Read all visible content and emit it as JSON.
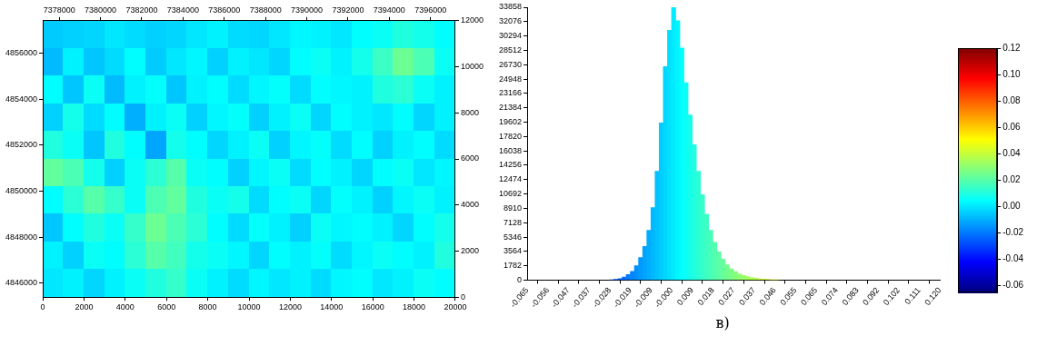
{
  "caption": "в)",
  "chart_data": [
    {
      "type": "heatmap",
      "xlim": [
        0,
        20000
      ],
      "xticks": [
        0,
        2000,
        4000,
        6000,
        8000,
        10000,
        12000,
        14000,
        16000,
        18000,
        20000
      ],
      "x2lim": [
        7377200,
        7397200
      ],
      "x2ticks": [
        7378000,
        7380000,
        7382000,
        7384000,
        7386000,
        7388000,
        7390000,
        7392000,
        7394000,
        7396000
      ],
      "ylim": [
        4845400,
        4857400
      ],
      "yticks": [
        4846000,
        4848000,
        4850000,
        4852000,
        4854000,
        4856000
      ],
      "y2lim": [
        0,
        12000
      ],
      "y2ticks": [
        0,
        2000,
        4000,
        6000,
        8000,
        10000,
        12000
      ],
      "grid": false,
      "cells": [
        [
          -0.005,
          -0.004,
          -0.003,
          0.0,
          -0.002,
          -0.004,
          -0.003,
          0.0,
          0.002,
          -0.002,
          -0.003,
          0.0,
          0.003,
          0.002,
          0.0,
          0.004,
          0.006,
          0.01,
          0.008,
          0.004
        ],
        [
          -0.008,
          0.002,
          -0.006,
          -0.002,
          0.004,
          -0.005,
          0.0,
          0.003,
          -0.004,
          0.002,
          0.0,
          -0.003,
          0.004,
          0.006,
          0.002,
          0.008,
          0.015,
          0.024,
          0.018,
          0.006
        ],
        [
          0.004,
          -0.006,
          0.006,
          -0.008,
          0.002,
          0.005,
          -0.006,
          0.002,
          0.004,
          -0.002,
          0.003,
          0.005,
          -0.002,
          0.004,
          0.003,
          0.002,
          0.01,
          0.012,
          0.006,
          0.002
        ],
        [
          -0.004,
          0.008,
          -0.002,
          0.004,
          -0.01,
          0.002,
          0.006,
          -0.004,
          0.003,
          0.005,
          -0.004,
          0.002,
          0.006,
          -0.003,
          0.004,
          0.002,
          0.0,
          0.004,
          -0.003,
          0.002
        ],
        [
          0.01,
          0.006,
          -0.006,
          0.01,
          0.004,
          -0.012,
          0.008,
          0.004,
          -0.003,
          0.002,
          0.006,
          -0.004,
          0.003,
          0.005,
          -0.002,
          0.004,
          -0.004,
          0.002,
          0.004,
          -0.002
        ],
        [
          0.022,
          0.018,
          0.008,
          -0.004,
          0.006,
          0.012,
          0.02,
          0.006,
          0.004,
          -0.004,
          0.003,
          0.006,
          -0.002,
          0.004,
          0.002,
          -0.003,
          0.004,
          0.006,
          0.0,
          0.003
        ],
        [
          0.004,
          0.012,
          0.02,
          0.014,
          0.006,
          0.018,
          0.022,
          0.01,
          0.006,
          0.008,
          -0.002,
          0.004,
          0.006,
          -0.003,
          0.005,
          0.002,
          -0.004,
          0.003,
          0.006,
          0.002
        ],
        [
          -0.006,
          0.004,
          0.01,
          0.006,
          0.014,
          0.024,
          0.018,
          0.012,
          0.004,
          -0.002,
          0.005,
          0.002,
          -0.004,
          0.006,
          0.003,
          0.004,
          0.002,
          -0.003,
          0.004,
          0.008
        ],
        [
          0.002,
          -0.004,
          0.006,
          0.004,
          0.012,
          0.02,
          0.016,
          0.008,
          0.006,
          0.003,
          -0.003,
          0.004,
          0.002,
          0.005,
          -0.002,
          0.003,
          0.006,
          0.004,
          0.002,
          0.01
        ],
        [
          0.0,
          0.002,
          -0.003,
          0.002,
          0.006,
          0.01,
          0.014,
          0.006,
          0.002,
          -0.002,
          0.003,
          0.0,
          0.002,
          -0.002,
          0.003,
          0.004,
          0.0,
          0.002,
          0.006,
          0.004
        ]
      ]
    },
    {
      "type": "histogram",
      "bins": [
        -0.028,
        -0.02615,
        -0.0243,
        -0.02245,
        -0.0206,
        -0.01875,
        -0.0169,
        -0.01505,
        -0.0132,
        -0.01135,
        -0.0095,
        -0.00765,
        -0.0058,
        -0.00395,
        -0.0021,
        -0.00025,
        0.0016,
        0.00345,
        0.0053,
        0.00715,
        0.009,
        0.01085,
        0.0127,
        0.01455,
        0.0164,
        0.01825,
        0.0201,
        0.02195,
        0.0238,
        0.02565,
        0.0275,
        0.02935,
        0.0312,
        0.03305,
        0.0349,
        0.03675,
        0.0386,
        0.04045,
        0.0423,
        0.04415,
        0.046,
        0.04785
      ],
      "values": [
        50,
        100,
        200,
        400,
        700,
        1100,
        1800,
        2800,
        4200,
        6200,
        9000,
        13500,
        19500,
        26500,
        31000,
        33858,
        32200,
        28800,
        24500,
        20500,
        16800,
        13500,
        10600,
        8200,
        6200,
        4700,
        3500,
        2600,
        1900,
        1400,
        1050,
        780,
        580,
        430,
        320,
        240,
        170,
        120,
        80,
        50,
        30
      ],
      "xlim": [
        -0.065,
        0.12
      ],
      "xticks": [
        {
          "value": -0.065,
          "label": "-0.065"
        },
        {
          "value": -0.05575,
          "label": "-0.056"
        },
        {
          "value": -0.0465,
          "label": "-0.047"
        },
        {
          "value": -0.03725,
          "label": "-0.037"
        },
        -0.028,
        {
          "value": -0.01875,
          "label": "-0.019"
        },
        {
          "value": -0.0095,
          "label": "-0.009"
        },
        {
          "value": -0.00025,
          "label": "-0.000"
        },
        0.009,
        {
          "value": 0.01825,
          "label": "0.018"
        },
        {
          "value": 0.0275,
          "label": "0.027"
        },
        {
          "value": 0.03675,
          "label": "0.037"
        },
        0.046,
        {
          "value": 0.05525,
          "label": "0.055"
        },
        {
          "value": 0.0645,
          "label": "0.065"
        },
        {
          "value": 0.07375,
          "label": "0.074"
        },
        0.083,
        {
          "value": 0.09225,
          "label": "0.092"
        },
        {
          "value": 0.1015,
          "label": "0.102"
        },
        {
          "value": 0.11075,
          "label": "0.111"
        },
        {
          "value": 0.12,
          "label": "0.120"
        }
      ],
      "ylim": [
        0,
        33858
      ],
      "yticks": [
        0,
        1782,
        3564,
        5346,
        7128,
        8910,
        10692,
        12474,
        14256,
        16038,
        17820,
        19602,
        21384,
        23166,
        24948,
        26730,
        28512,
        30294,
        32076,
        33858
      ],
      "grid": false
    },
    {
      "type": "colorbar",
      "ylim": [
        -0.065,
        0.12
      ],
      "yticks": [
        -0.06,
        -0.04,
        -0.02,
        {
          "value": 0,
          "label": "0.00"
        },
        0.02,
        0.04,
        0.06,
        0.08,
        {
          "value": 0.1,
          "label": "0.10"
        },
        0.12
      ]
    }
  ]
}
